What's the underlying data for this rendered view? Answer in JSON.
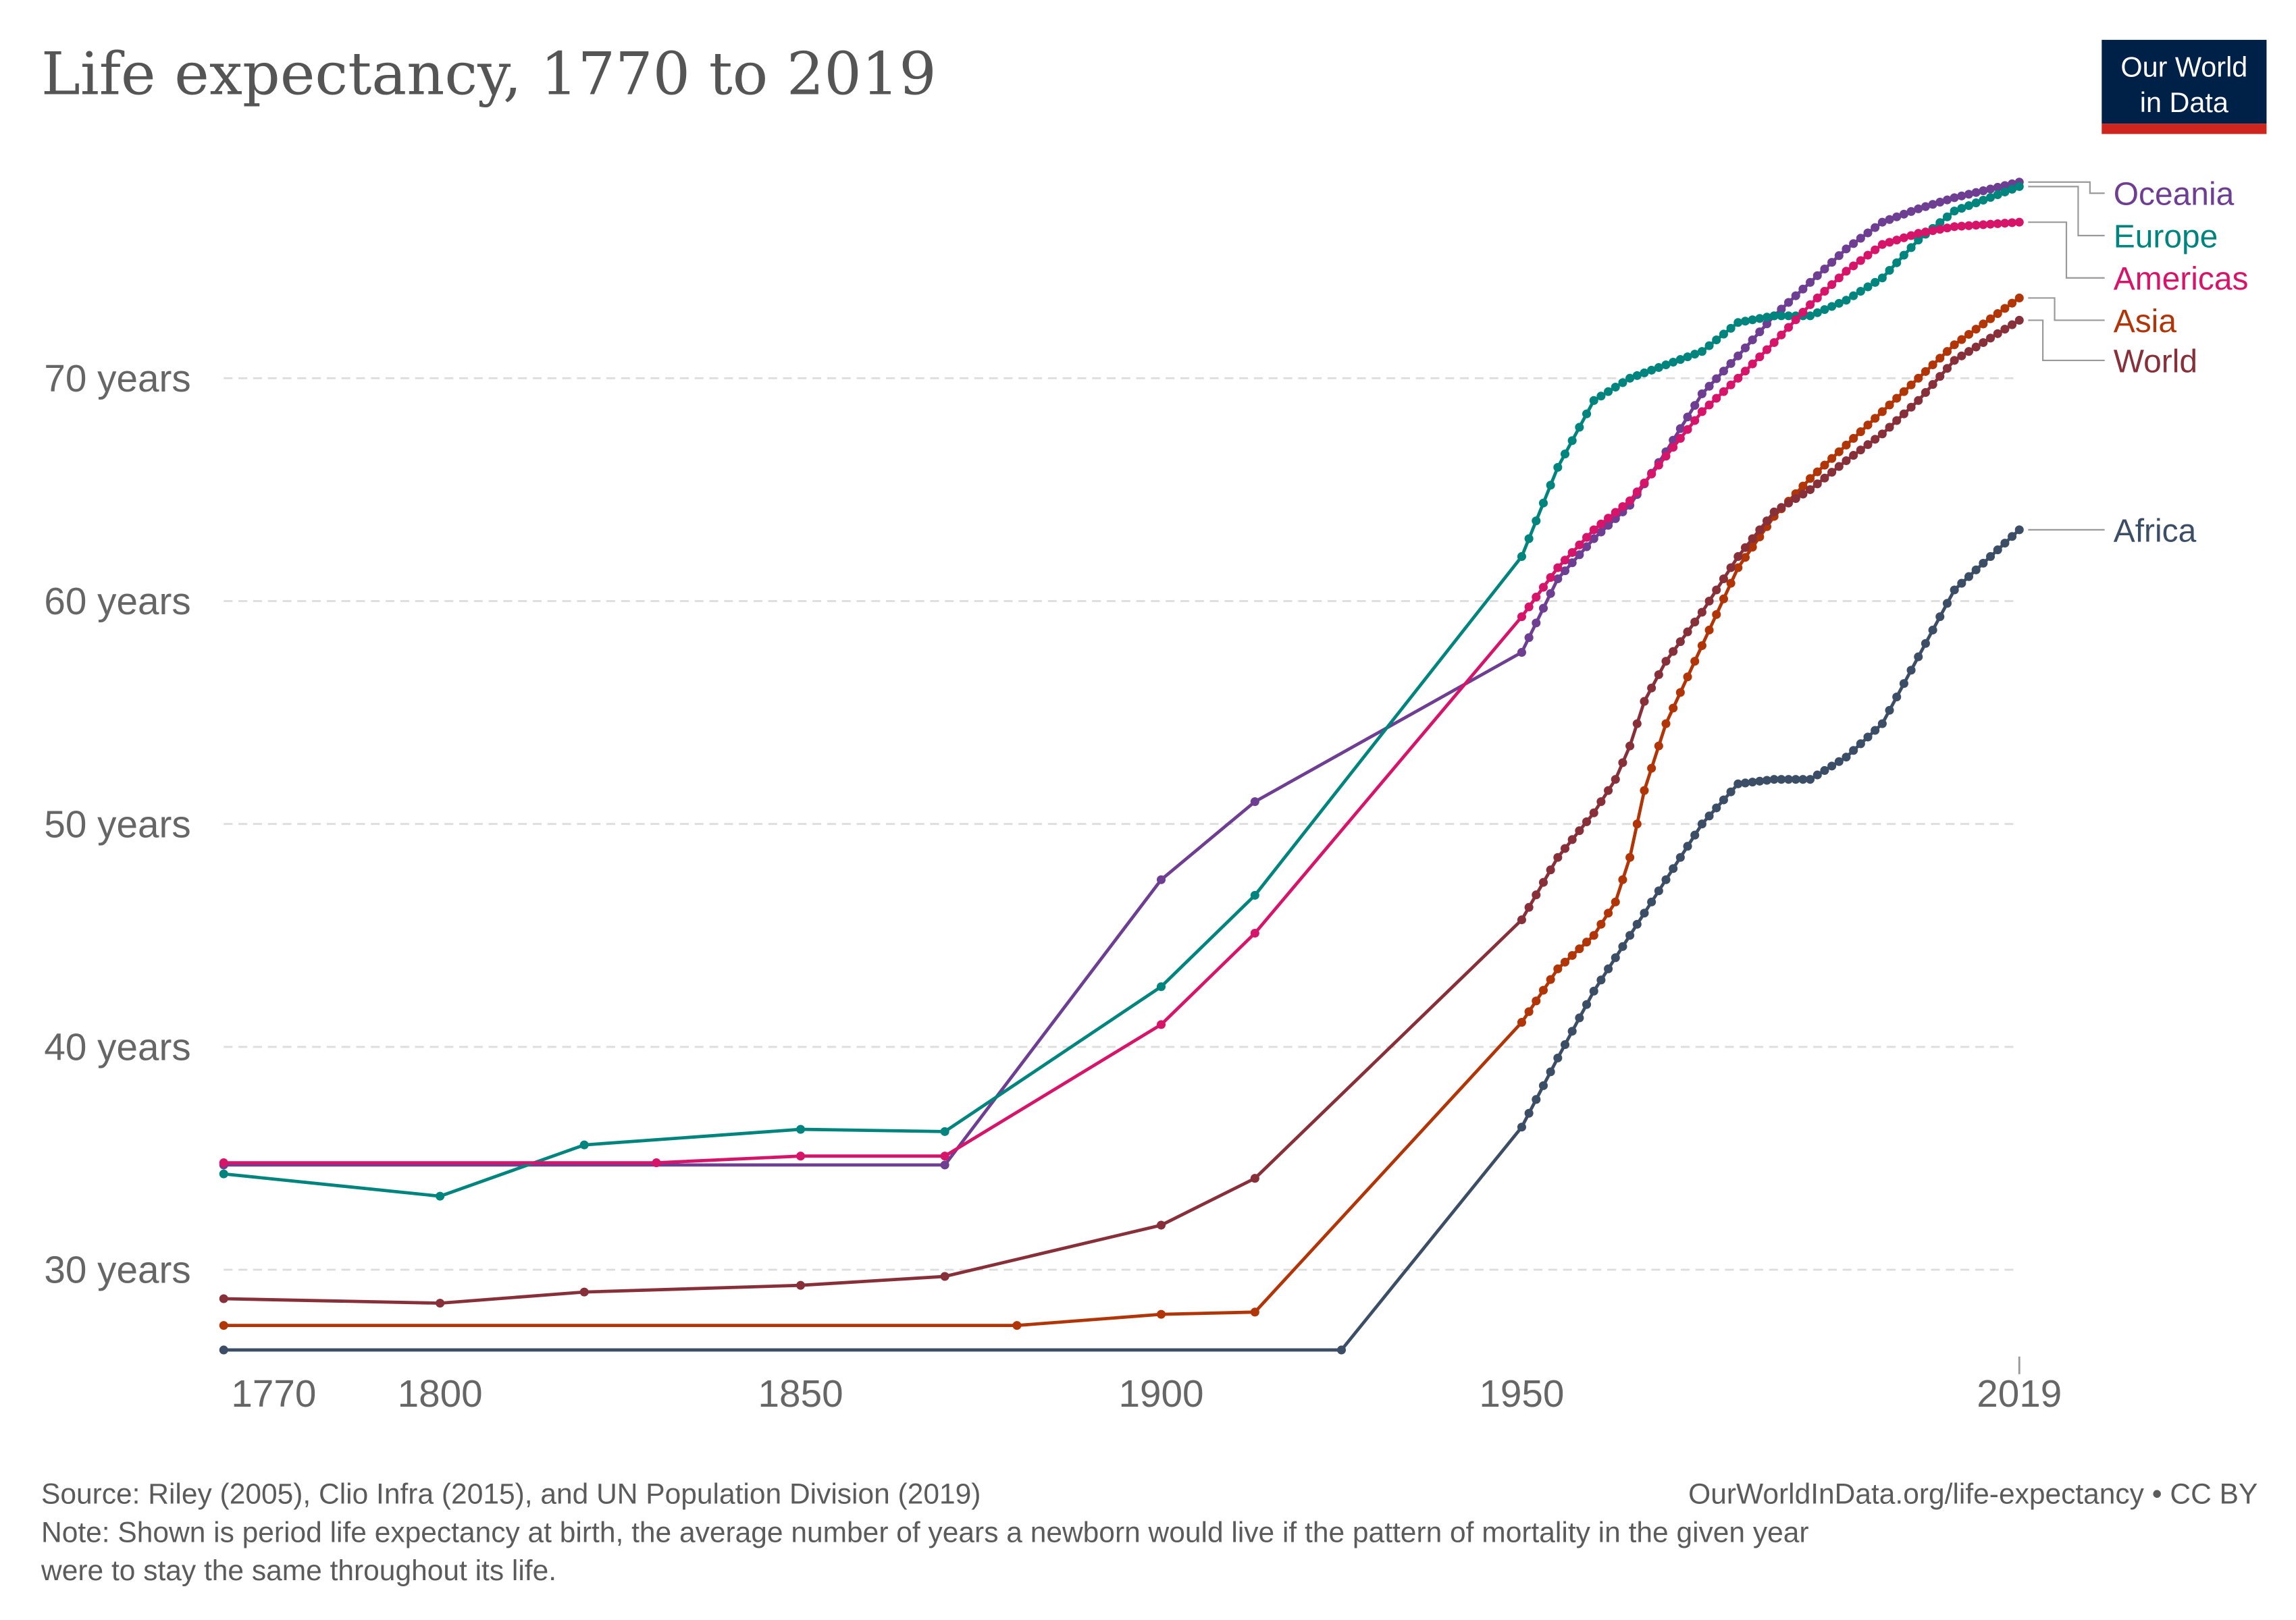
{
  "title": "Life expectancy, 1770 to 2019",
  "logo": {
    "line1": "Our World",
    "line2": "in Data",
    "bg": "#002147",
    "bar": "#ce261e"
  },
  "footer": {
    "source": "Source: Riley (2005), Clio Infra (2015), and UN Population Division (2019)",
    "url": "OurWorldInData.org/life-expectancy • CC BY",
    "note1": "Note: Shown is period life expectancy at birth, the average number of years a newborn would live if the pattern of mortality in the given year",
    "note2": "were to stay the same throughout its life."
  },
  "chart_data": {
    "type": "line",
    "title": "Life expectancy, 1770 to 2019",
    "xlim": [
      1770,
      2019
    ],
    "ylim": [
      26.4,
      79.2
    ],
    "x_ticks": [
      1770,
      1800,
      1850,
      1900,
      1950,
      2019
    ],
    "y_ticks": [
      30,
      40,
      50,
      60,
      70
    ],
    "y_tick_labels": [
      "30 years",
      "40 years",
      "50 years",
      "60 years",
      "70 years"
    ],
    "grid": "horizontal dashed",
    "legend": "right, labels at line ends",
    "series": [
      {
        "name": "Oceania",
        "color": "#6d3e91",
        "label_y": 78.3,
        "points": [
          [
            1770,
            34.7
          ],
          [
            1870,
            34.7
          ],
          [
            1900,
            47.5
          ],
          [
            1913,
            51
          ],
          [
            1950,
            57.7
          ],
          [
            1955,
            61
          ],
          [
            1960,
            62.8
          ],
          [
            1965,
            64.3
          ],
          [
            1970,
            66.7
          ],
          [
            1975,
            69.3
          ],
          [
            1980,
            71
          ],
          [
            1985,
            72.8
          ],
          [
            1990,
            74.3
          ],
          [
            1995,
            75.8
          ],
          [
            2000,
            77
          ],
          [
            2005,
            77.6
          ],
          [
            2010,
            78.1
          ],
          [
            2019,
            78.8
          ]
        ]
      },
      {
        "name": "Europe",
        "color": "#00847e",
        "label_y": 76.4,
        "points": [
          [
            1770,
            34.3
          ],
          [
            1800,
            33.3
          ],
          [
            1820,
            35.6
          ],
          [
            1850,
            36.3
          ],
          [
            1870,
            36.2
          ],
          [
            1900,
            42.7
          ],
          [
            1913,
            46.8
          ],
          [
            1950,
            62
          ],
          [
            1955,
            66
          ],
          [
            1960,
            69
          ],
          [
            1965,
            70
          ],
          [
            1970,
            70.6
          ],
          [
            1975,
            71.2
          ],
          [
            1980,
            72.5
          ],
          [
            1985,
            72.8
          ],
          [
            1990,
            72.8
          ],
          [
            1995,
            73.5
          ],
          [
            2000,
            74.5
          ],
          [
            2005,
            76.2
          ],
          [
            2010,
            77.5
          ],
          [
            2019,
            78.6
          ]
        ]
      },
      {
        "name": "Americas",
        "color": "#d6156a",
        "label_y": 74.5,
        "points": [
          [
            1770,
            34.8
          ],
          [
            1830,
            34.8
          ],
          [
            1850,
            35.1
          ],
          [
            1870,
            35.1
          ],
          [
            1900,
            41
          ],
          [
            1913,
            45.1
          ],
          [
            1950,
            59.3
          ],
          [
            1955,
            61.5
          ],
          [
            1960,
            63.2
          ],
          [
            1965,
            64.5
          ],
          [
            1970,
            66.5
          ],
          [
            1975,
            68.5
          ],
          [
            1980,
            70
          ],
          [
            1985,
            71.6
          ],
          [
            1990,
            73.3
          ],
          [
            1995,
            74.8
          ],
          [
            2000,
            76
          ],
          [
            2005,
            76.5
          ],
          [
            2010,
            76.8
          ],
          [
            2019,
            77.0
          ]
        ]
      },
      {
        "name": "Asia",
        "color": "#b13507",
        "label_y": 72.6,
        "points": [
          [
            1770,
            27.5
          ],
          [
            1880,
            27.5
          ],
          [
            1900,
            28
          ],
          [
            1913,
            28.1
          ],
          [
            1950,
            41.1
          ],
          [
            1955,
            43.5
          ],
          [
            1960,
            45
          ],
          [
            1963,
            46.5
          ],
          [
            1965,
            48.5
          ],
          [
            1967,
            51.5
          ],
          [
            1970,
            54.5
          ],
          [
            1975,
            58
          ],
          [
            1980,
            61.5
          ],
          [
            1985,
            63.8
          ],
          [
            1990,
            65.5
          ],
          [
            1995,
            67
          ],
          [
            2000,
            68.5
          ],
          [
            2005,
            70
          ],
          [
            2010,
            71.5
          ],
          [
            2019,
            73.6
          ]
        ]
      },
      {
        "name": "World",
        "color": "#883039",
        "label_y": 70.8,
        "points": [
          [
            1770,
            28.7
          ],
          [
            1800,
            28.5
          ],
          [
            1820,
            29
          ],
          [
            1850,
            29.3
          ],
          [
            1870,
            29.7
          ],
          [
            1900,
            32
          ],
          [
            1913,
            34.1
          ],
          [
            1950,
            45.7
          ],
          [
            1955,
            48.5
          ],
          [
            1960,
            50.5
          ],
          [
            1963,
            52
          ],
          [
            1965,
            53.5
          ],
          [
            1967,
            55.5
          ],
          [
            1970,
            57.3
          ],
          [
            1975,
            59.5
          ],
          [
            1980,
            62
          ],
          [
            1985,
            64
          ],
          [
            1990,
            65
          ],
          [
            1995,
            66.3
          ],
          [
            2000,
            67.5
          ],
          [
            2005,
            69
          ],
          [
            2010,
            70.8
          ],
          [
            2019,
            72.6
          ]
        ]
      },
      {
        "name": "Africa",
        "color": "#3c4e66",
        "label_y": 63.2,
        "points": [
          [
            1770,
            26.4
          ],
          [
            1925,
            26.4
          ],
          [
            1950,
            36.4
          ],
          [
            1955,
            39.5
          ],
          [
            1960,
            42.5
          ],
          [
            1965,
            45
          ],
          [
            1970,
            47.5
          ],
          [
            1975,
            50
          ],
          [
            1980,
            51.8
          ],
          [
            1985,
            52
          ],
          [
            1990,
            52
          ],
          [
            1995,
            53
          ],
          [
            2000,
            54.5
          ],
          [
            2005,
            57.5
          ],
          [
            2010,
            60.5
          ],
          [
            2019,
            63.2
          ]
        ]
      }
    ]
  }
}
